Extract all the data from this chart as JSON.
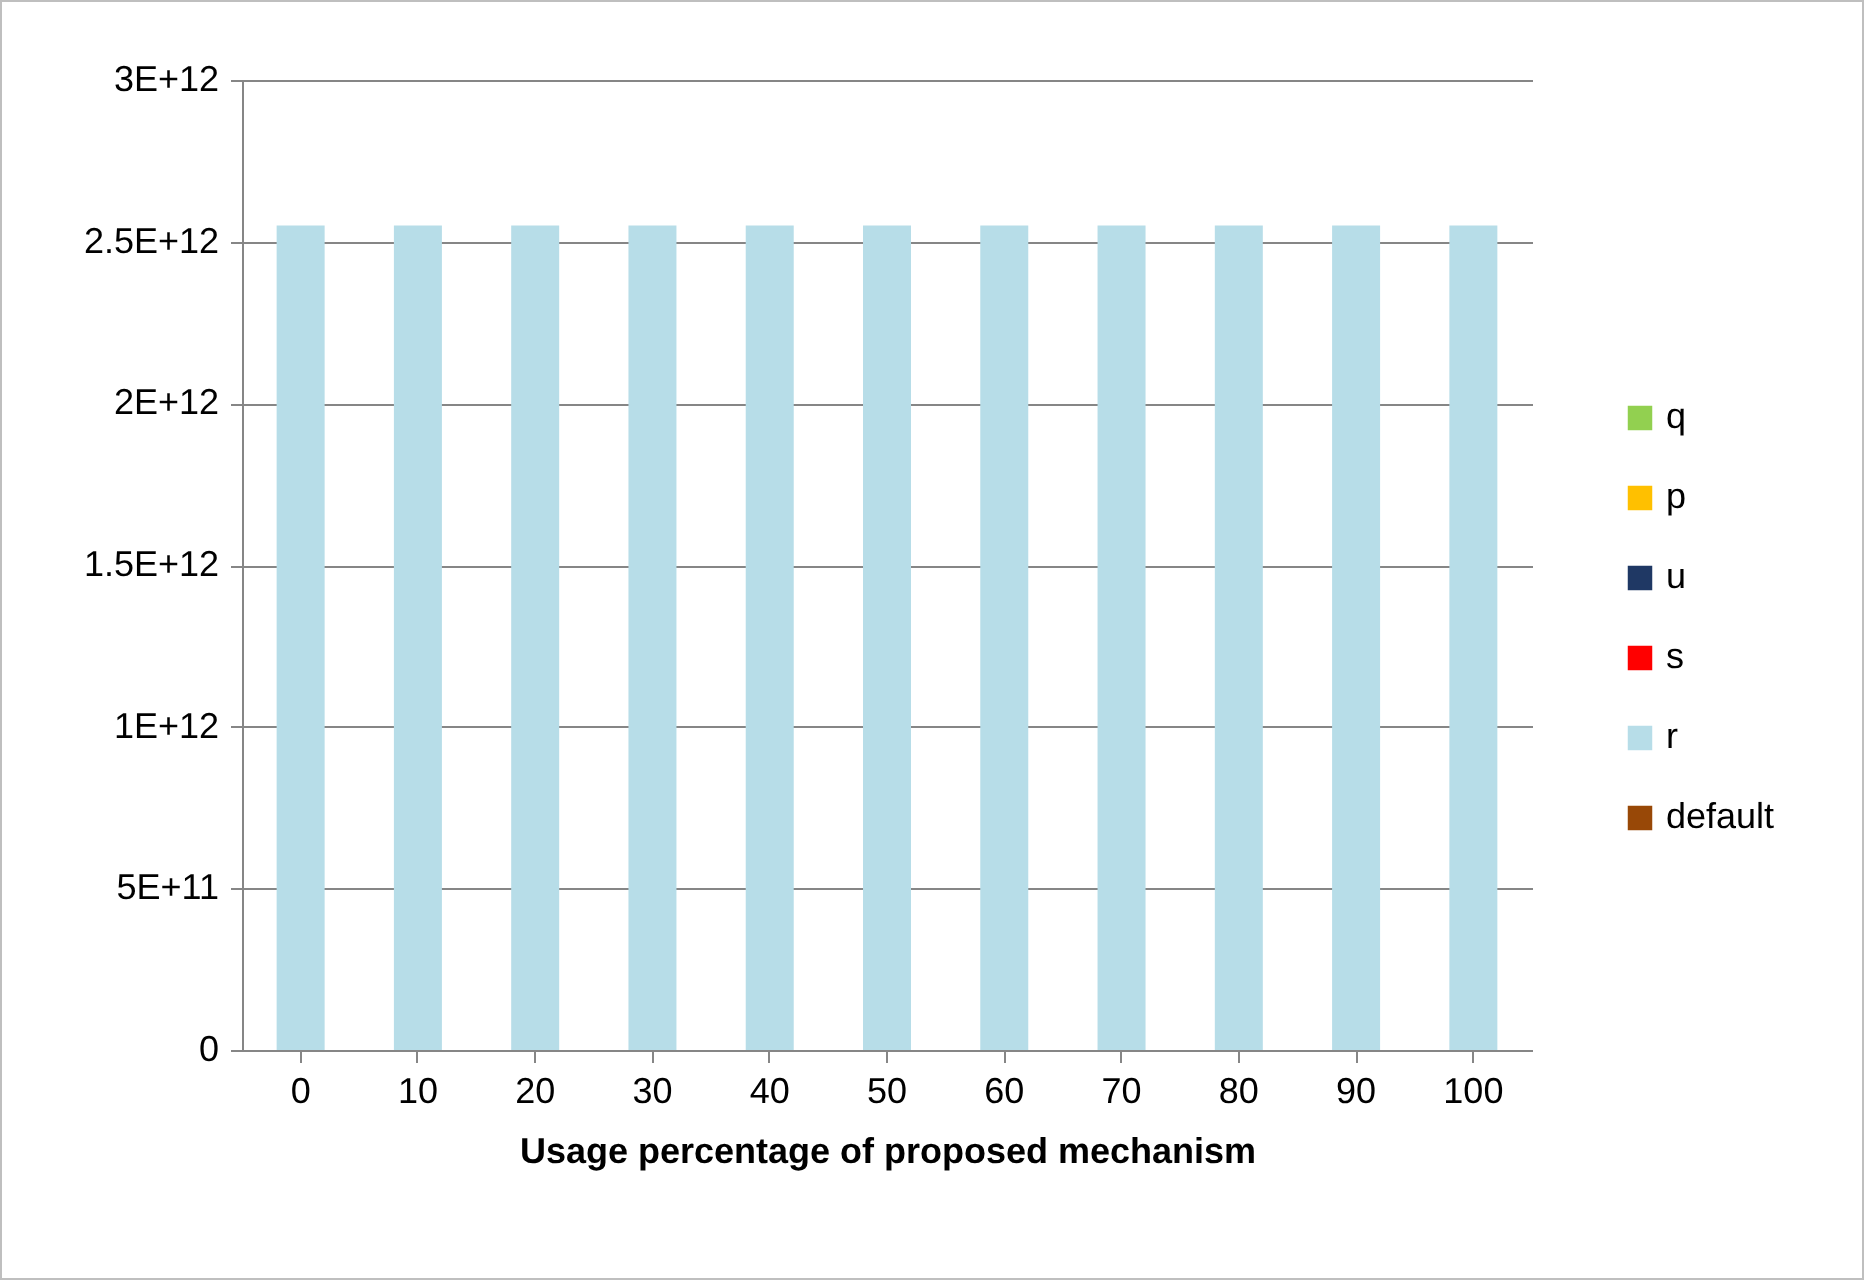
{
  "chart_data": {
    "type": "bar",
    "stacked": true,
    "xlabel": "Usage percentage of proposed mechanism",
    "categories": [
      "0",
      "10",
      "20",
      "30",
      "40",
      "50",
      "60",
      "70",
      "80",
      "90",
      "100"
    ],
    "series": [
      {
        "name": "default",
        "color": "#984807",
        "values": [
          0,
          0,
          0,
          0,
          0,
          0,
          0,
          0,
          0,
          0,
          0
        ]
      },
      {
        "name": "r",
        "color": "#b7dde8",
        "values": [
          2550000000000.0,
          2550000000000.0,
          2550000000000.0,
          2550000000000.0,
          2550000000000.0,
          2550000000000.0,
          2550000000000.0,
          2550000000000.0,
          2550000000000.0,
          2550000000000.0,
          2550000000000.0
        ]
      },
      {
        "name": "s",
        "color": "#ff0000",
        "values": [
          0,
          0,
          0,
          0,
          0,
          0,
          0,
          0,
          0,
          0,
          0
        ]
      },
      {
        "name": "u",
        "color": "#1f3864",
        "values": [
          0,
          0,
          0,
          0,
          0,
          0,
          0,
          0,
          0,
          0,
          0
        ]
      },
      {
        "name": "p",
        "color": "#ffc000",
        "values": [
          0,
          0,
          0,
          0,
          0,
          0,
          0,
          0,
          0,
          0,
          0
        ]
      },
      {
        "name": "q",
        "color": "#92d050",
        "values": [
          0,
          0,
          0,
          0,
          0,
          0,
          0,
          0,
          0,
          0,
          0
        ]
      }
    ],
    "ylim": [
      0,
      3000000000000.0
    ],
    "yticks": [
      0,
      {
        "value": 500000000000.0,
        "label": "5E+11"
      },
      {
        "value": 1000000000000.0,
        "label": "1E+12"
      },
      {
        "value": 1500000000000.0,
        "label": "1.5E+12"
      },
      {
        "value": 2000000000000.0,
        "label": "2E+12"
      },
      {
        "value": 2500000000000.0,
        "label": "2.5E+12"
      },
      {
        "value": 3000000000000.0,
        "label": "3E+12"
      }
    ],
    "grid": "y",
    "legend": "right"
  }
}
